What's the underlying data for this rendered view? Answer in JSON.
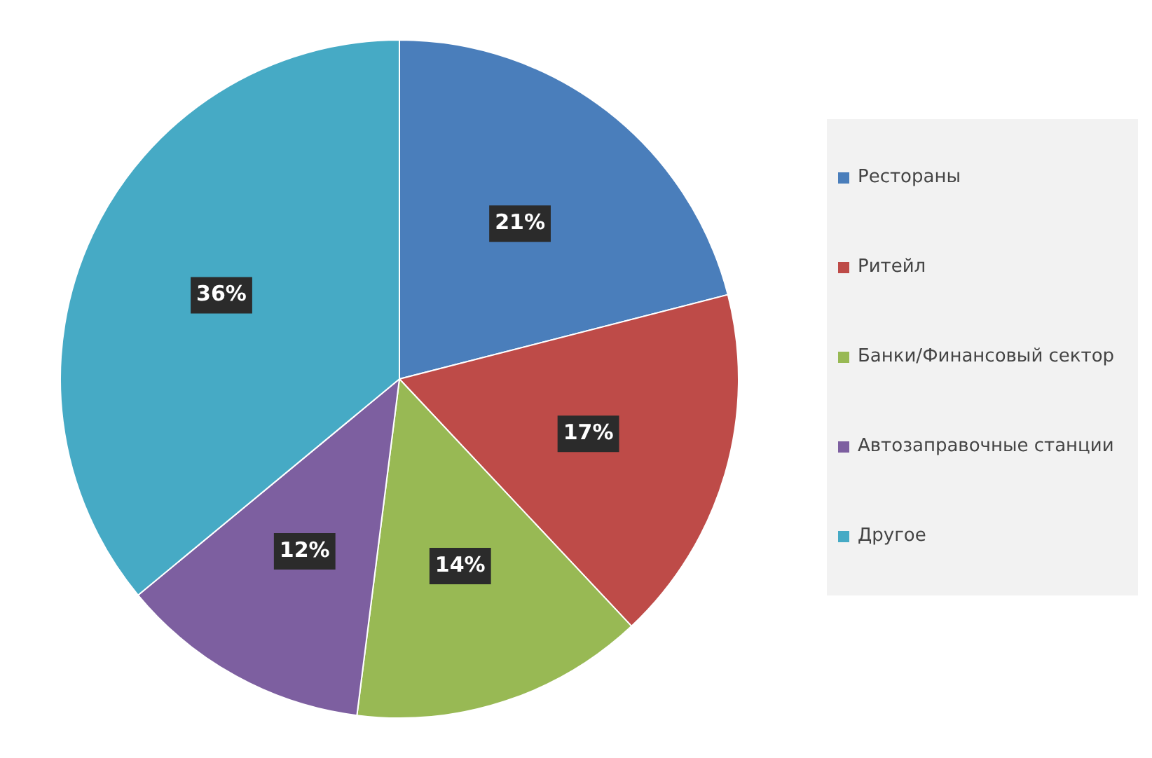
{
  "chart_data": {
    "type": "pie",
    "categories": [
      "Рестораны",
      "Ритейл",
      "Банки/Финансовый сектор",
      "Автозаправочные станции",
      "Другое"
    ],
    "values": [
      21,
      17,
      14,
      12,
      36
    ],
    "colors": [
      "#4a7ebb",
      "#be4b48",
      "#98b954",
      "#7d5fa0",
      "#46aac5"
    ],
    "value_labels": [
      "21%",
      "17%",
      "14%",
      "12%",
      "36%"
    ],
    "legend": "right"
  }
}
